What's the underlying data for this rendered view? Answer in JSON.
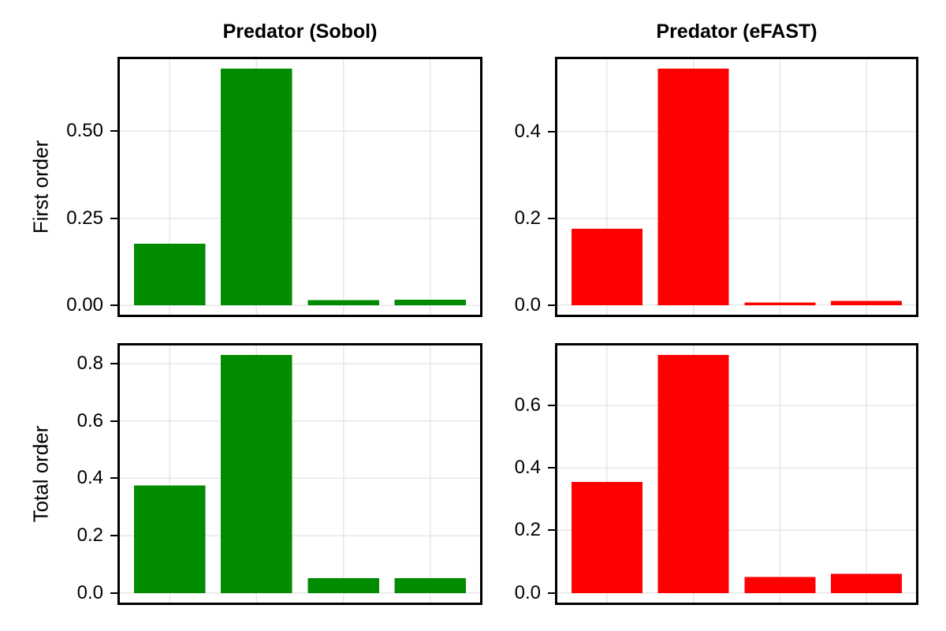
{
  "figure": {
    "background_color": "#FFFFFF",
    "panel_border_color": "#000000",
    "grid_color": "#E7E7E7",
    "tick_color": "#000000",
    "text_color": "#000000",
    "sobol_color": "#008B00",
    "efast_color": "#FF0000",
    "row_labels": [
      "First order",
      "Total order"
    ],
    "column_titles": [
      "Predator (Sobol)",
      "Predator (eFAST)"
    ]
  },
  "chart_data": [
    {
      "type": "bar",
      "panel": "top-left",
      "title": "Predator (Sobol)",
      "ylabel": "First order",
      "bar_color": "#008B00",
      "n_bars": 4,
      "x_tick_labels": [
        "",
        "",
        "",
        ""
      ],
      "values": [
        0.177,
        0.68,
        0.015,
        0.016
      ],
      "yticks": [
        0,
        0.25,
        0.5
      ],
      "ytick_labels": [
        "0.00",
        "0.25",
        "0.50"
      ],
      "ylim": [
        -0.034,
        0.714
      ],
      "grid": true,
      "legend": "none"
    },
    {
      "type": "bar",
      "panel": "top-right",
      "title": "Predator (eFAST)",
      "ylabel": "",
      "bar_color": "#FF0000",
      "n_bars": 4,
      "x_tick_labels": [
        "",
        "",
        "",
        ""
      ],
      "values": [
        0.176,
        0.545,
        0.006,
        0.01
      ],
      "yticks": [
        0,
        0.2,
        0.4
      ],
      "ytick_labels": [
        "0.0",
        "0.2",
        "0.4"
      ],
      "ylim": [
        -0.0273,
        0.5723
      ],
      "grid": true,
      "legend": "none"
    },
    {
      "type": "bar",
      "panel": "bottom-left",
      "title": "",
      "ylabel": "Total order",
      "bar_color": "#008B00",
      "n_bars": 4,
      "x_tick_labels": [
        "",
        "",
        "",
        ""
      ],
      "values": [
        0.375,
        0.83,
        0.052,
        0.052
      ],
      "yticks": [
        0,
        0.2,
        0.4,
        0.6,
        0.8
      ],
      "ytick_labels": [
        "0.0",
        "0.2",
        "0.4",
        "0.6",
        "0.8"
      ],
      "ylim": [
        -0.0415,
        0.8715
      ],
      "grid": true,
      "legend": "none"
    },
    {
      "type": "bar",
      "panel": "bottom-right",
      "title": "",
      "ylabel": "",
      "bar_color": "#FF0000",
      "n_bars": 4,
      "x_tick_labels": [
        "",
        "",
        "",
        ""
      ],
      "values": [
        0.355,
        0.76,
        0.051,
        0.062
      ],
      "yticks": [
        0,
        0.2,
        0.4,
        0.6
      ],
      "ytick_labels": [
        "0.0",
        "0.2",
        "0.4",
        "0.6"
      ],
      "ylim": [
        -0.038,
        0.798
      ],
      "grid": true,
      "legend": "none"
    }
  ]
}
